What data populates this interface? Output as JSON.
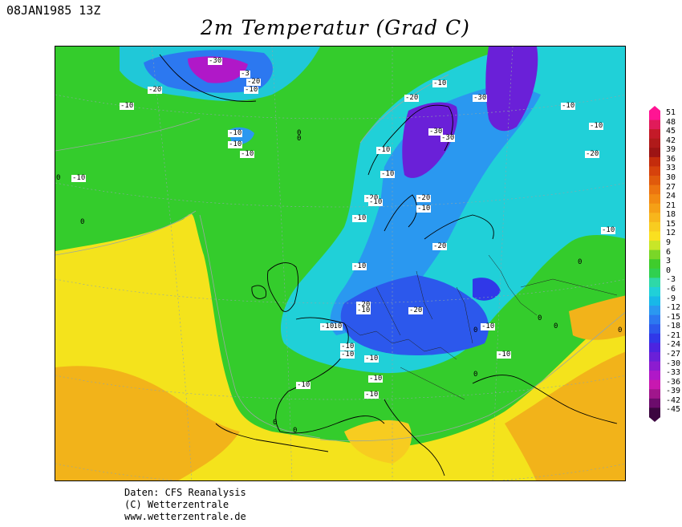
{
  "header": {
    "timestamp": "08JAN1985 13Z",
    "title": "2m Temperatur (Grad C)"
  },
  "map": {
    "contour_labels": [
      "-30",
      "-3",
      "-20",
      "-10",
      "-20",
      "-10",
      "0",
      "-10",
      "-10",
      "-10",
      "0",
      "0",
      "-10",
      "-20",
      "-30",
      "-30",
      "-30",
      "-10",
      "-10",
      "-20",
      "-10",
      "-10",
      "-20",
      "-10",
      "-20",
      "-10",
      "-20",
      "-10",
      "-10",
      "-20",
      "-10",
      "-10",
      "-10",
      "-10",
      "-10",
      "-10",
      "-10",
      "0",
      "-10",
      "0",
      "-20",
      "-10",
      "-10",
      "-10",
      "0",
      "0",
      "0",
      "0",
      "-10",
      "-10",
      "0",
      "0",
      "0"
    ]
  },
  "colorbar": {
    "levels": [
      "51",
      "48",
      "45",
      "42",
      "39",
      "36",
      "33",
      "30",
      "27",
      "24",
      "21",
      "18",
      "15",
      "12",
      "9",
      "6",
      "3",
      "0",
      "-3",
      "-6",
      "-9",
      "-12",
      "-15",
      "-18",
      "-21",
      "-24",
      "-27",
      "-30",
      "-33",
      "-36",
      "-39",
      "-42",
      "-45"
    ],
    "colors": [
      "#ff1493",
      "#e01b5a",
      "#c41a28",
      "#b01a1a",
      "#9c1414",
      "#c42c0c",
      "#d6420c",
      "#e05a0c",
      "#ec7410",
      "#f28a12",
      "#f5a016",
      "#f7b61c",
      "#f8cc20",
      "#fae020",
      "#c8e628",
      "#7ad628",
      "#3fcc2c",
      "#30d050",
      "#2ed8a8",
      "#20d0d8",
      "#18b8e8",
      "#2a98f0",
      "#2c78f0",
      "#2c58ec",
      "#3038e8",
      "#4c24e0",
      "#6a20d8",
      "#8c1cd0",
      "#b018c8",
      "#c818b0",
      "#a0168c",
      "#6c0c6c",
      "#3c0640"
    ]
  },
  "credits": {
    "line1": "Daten: CFS Reanalysis",
    "line2": "(C) Wetterzentrale",
    "line3": "www.wetterzentrale.de"
  }
}
